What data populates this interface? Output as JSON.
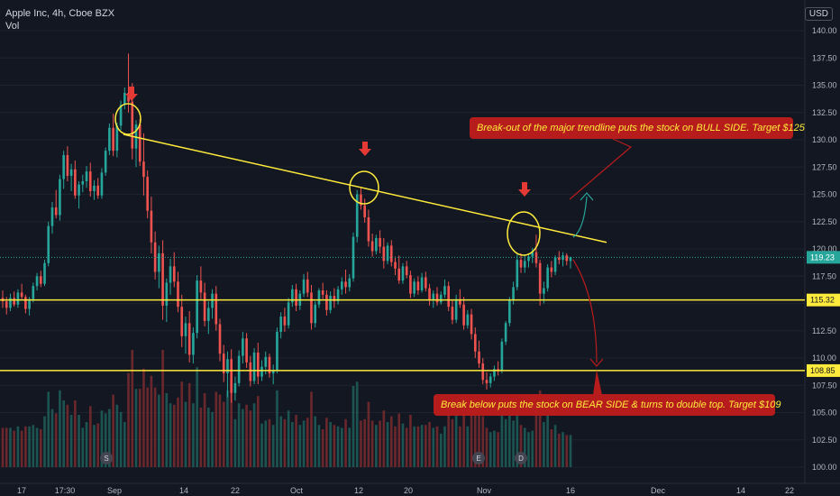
{
  "header": {
    "symbol": "Apple Inc, 4h, Cboe BZX",
    "indicator": "Vol",
    "currency": "USD"
  },
  "colors": {
    "background": "#131722",
    "up": "#26a69a",
    "down": "#ef5350",
    "vol_up": "#1f5f5b",
    "vol_down": "#7a2a2e",
    "yellow": "#ffeb3b",
    "arrow": "#e53935",
    "label_bg": "#b71c1c",
    "label_text": "#ffeb3b",
    "axis_text": "#b2b5be",
    "grid": "#1e222d",
    "current": "#26a69a"
  },
  "annotations": {
    "bull": "Break-out of the major trendline puts the stock on BULL SIDE. Target $125",
    "bear": "Break below puts the stock on BEAR SIDE & turns to double top. Target $109"
  },
  "markers": [
    {
      "date": "Sep 2",
      "label": "S"
    },
    {
      "date": "Oct 30",
      "label": "E"
    },
    {
      "date": "Nov 6",
      "label": "D"
    }
  ],
  "chart_data": {
    "type": "candlestick",
    "y_ticks": [
      "140.00",
      "137.50",
      "135.00",
      "132.50",
      "130.00",
      "127.50",
      "125.00",
      "122.50",
      "120.00",
      "117.50",
      "115.00",
      "112.50",
      "110.00",
      "107.50",
      "105.00",
      "102.50",
      "100.00"
    ],
    "x_ticks": [
      "17",
      "17:30",
      "Sep",
      "14",
      "22",
      "Oct",
      "12",
      "20",
      "Nov",
      "16",
      "Dec",
      "14",
      "22"
    ],
    "ylim": [
      100,
      140.5
    ],
    "horizontal_levels": [
      {
        "value": 115.32,
        "label": "115.32"
      },
      {
        "value": 108.85,
        "label": "108.85"
      }
    ],
    "current_price": {
      "value": 119.23,
      "label": "119.23"
    },
    "trendline": {
      "from": 130.5,
      "to": 120.6
    },
    "ohlc": [
      [
        115.5,
        116.2,
        114.6,
        115.2
      ],
      [
        115.2,
        115.6,
        114.0,
        114.6
      ],
      [
        114.6,
        115.9,
        114.3,
        115.5
      ],
      [
        115.5,
        116.1,
        114.7,
        114.9
      ],
      [
        114.9,
        116.3,
        114.6,
        116.0
      ],
      [
        116.0,
        116.8,
        115.4,
        115.6
      ],
      [
        115.6,
        115.8,
        114.1,
        114.5
      ],
      [
        114.5,
        115.6,
        113.9,
        115.4
      ],
      [
        115.4,
        116.9,
        115.1,
        116.6
      ],
      [
        116.6,
        117.8,
        116.2,
        117.5
      ],
      [
        117.5,
        118.0,
        116.5,
        116.8
      ],
      [
        116.8,
        119.0,
        116.6,
        118.7
      ],
      [
        118.7,
        122.5,
        118.4,
        122.1
      ],
      [
        122.1,
        124.3,
        121.4,
        123.8
      ],
      [
        123.8,
        125.4,
        122.8,
        123.1
      ],
      [
        123.1,
        126.8,
        122.6,
        126.4
      ],
      [
        126.4,
        129.0,
        125.5,
        128.6
      ],
      [
        128.6,
        129.4,
        126.2,
        126.7
      ],
      [
        126.7,
        127.8,
        125.3,
        127.3
      ],
      [
        127.3,
        128.1,
        124.6,
        124.9
      ],
      [
        124.9,
        126.2,
        123.7,
        125.9
      ],
      [
        125.9,
        126.8,
        125.2,
        126.2
      ],
      [
        126.2,
        127.6,
        125.6,
        127.1
      ],
      [
        127.1,
        127.9,
        124.8,
        125.3
      ],
      [
        125.3,
        126.3,
        124.5,
        125.8
      ],
      [
        125.8,
        126.5,
        124.6,
        124.9
      ],
      [
        124.9,
        127.4,
        124.6,
        127.0
      ],
      [
        127.0,
        129.3,
        126.7,
        129.0
      ],
      [
        129.0,
        131.5,
        128.6,
        131.1
      ],
      [
        131.1,
        132.4,
        128.5,
        129.0
      ],
      [
        129.0,
        131.6,
        128.4,
        131.3
      ],
      [
        131.3,
        133.6,
        130.9,
        133.2
      ],
      [
        133.2,
        134.8,
        132.8,
        134.3
      ],
      [
        134.3,
        137.9,
        132.5,
        133.5
      ],
      [
        133.5,
        135.2,
        128.2,
        129.2
      ],
      [
        129.2,
        131.8,
        127.5,
        131.4
      ],
      [
        131.4,
        131.9,
        127.6,
        128.0
      ],
      [
        128.0,
        130.6,
        124.9,
        126.6
      ],
      [
        126.6,
        127.2,
        122.8,
        123.5
      ],
      [
        123.5,
        124.8,
        119.6,
        120.6
      ],
      [
        120.6,
        121.6,
        117.2,
        117.9
      ],
      [
        117.9,
        120.3,
        116.4,
        119.6
      ],
      [
        119.6,
        120.8,
        113.5,
        114.8
      ],
      [
        114.8,
        117.3,
        113.3,
        116.9
      ],
      [
        116.9,
        119.1,
        115.8,
        118.4
      ],
      [
        118.4,
        119.7,
        116.5,
        117.0
      ],
      [
        117.0,
        117.9,
        114.2,
        114.7
      ],
      [
        114.7,
        115.8,
        111.0,
        112.0
      ],
      [
        112.0,
        113.8,
        110.4,
        113.2
      ],
      [
        113.2,
        114.3,
        109.6,
        110.3
      ],
      [
        110.3,
        112.8,
        109.5,
        112.3
      ],
      [
        112.3,
        117.6,
        111.8,
        117.1
      ],
      [
        117.1,
        118.4,
        115.4,
        116.0
      ],
      [
        116.0,
        116.9,
        112.9,
        113.4
      ],
      [
        113.4,
        115.2,
        112.2,
        114.6
      ],
      [
        114.6,
        116.3,
        113.6,
        115.9
      ],
      [
        115.9,
        116.6,
        112.5,
        113.1
      ],
      [
        113.1,
        113.6,
        109.7,
        110.4
      ],
      [
        110.4,
        111.2,
        107.8,
        108.6
      ],
      [
        108.6,
        110.6,
        106.4,
        109.9
      ],
      [
        109.9,
        110.8,
        105.9,
        106.8
      ],
      [
        106.8,
        108.3,
        106.1,
        107.7
      ],
      [
        107.7,
        110.7,
        107.4,
        110.2
      ],
      [
        110.2,
        112.4,
        109.5,
        111.8
      ],
      [
        111.8,
        112.3,
        109.1,
        109.6
      ],
      [
        109.6,
        110.2,
        107.4,
        107.9
      ],
      [
        107.9,
        110.9,
        107.6,
        110.5
      ],
      [
        110.5,
        111.4,
        107.6,
        108.3
      ],
      [
        108.3,
        109.8,
        107.9,
        109.2
      ],
      [
        109.2,
        110.6,
        108.5,
        110.1
      ],
      [
        110.1,
        110.4,
        108.2,
        108.6
      ],
      [
        108.6,
        109.4,
        107.6,
        108.9
      ],
      [
        108.9,
        112.8,
        108.6,
        112.4
      ],
      [
        112.4,
        114.2,
        111.8,
        113.8
      ],
      [
        113.8,
        114.6,
        112.4,
        113.0
      ],
      [
        113.0,
        115.5,
        112.7,
        115.1
      ],
      [
        115.1,
        116.7,
        114.7,
        116.3
      ],
      [
        116.3,
        116.8,
        114.3,
        114.8
      ],
      [
        114.8,
        116.2,
        114.4,
        115.9
      ],
      [
        115.9,
        117.7,
        115.6,
        117.2
      ],
      [
        117.2,
        117.9,
        115.6,
        116.0
      ],
      [
        116.0,
        116.7,
        112.6,
        113.2
      ],
      [
        113.2,
        115.2,
        112.8,
        114.9
      ],
      [
        114.9,
        116.4,
        114.6,
        116.2
      ],
      [
        116.2,
        116.9,
        115.4,
        115.8
      ],
      [
        115.8,
        116.2,
        113.9,
        114.4
      ],
      [
        114.4,
        116.1,
        114.1,
        115.7
      ],
      [
        115.7,
        116.4,
        114.6,
        115.2
      ],
      [
        115.2,
        116.6,
        114.9,
        116.3
      ],
      [
        116.3,
        117.4,
        115.8,
        117.0
      ],
      [
        117.0,
        118.1,
        115.9,
        116.5
      ],
      [
        116.5,
        117.7,
        116.1,
        117.3
      ],
      [
        117.3,
        121.5,
        117.0,
        121.1
      ],
      [
        121.1,
        125.4,
        120.6,
        125.0
      ],
      [
        125.0,
        125.7,
        123.6,
        124.0
      ],
      [
        124.0,
        124.6,
        122.4,
        122.9
      ],
      [
        122.9,
        123.6,
        120.2,
        120.7
      ],
      [
        120.7,
        121.4,
        119.3,
        119.8
      ],
      [
        119.8,
        121.3,
        119.5,
        121.0
      ],
      [
        121.0,
        121.7,
        119.6,
        120.2
      ],
      [
        120.2,
        121.0,
        118.2,
        118.9
      ],
      [
        118.9,
        120.6,
        118.6,
        120.3
      ],
      [
        120.3,
        120.8,
        118.4,
        118.8
      ],
      [
        118.8,
        119.3,
        117.6,
        118.2
      ],
      [
        118.2,
        119.4,
        116.8,
        117.1
      ],
      [
        117.1,
        118.7,
        116.8,
        118.4
      ],
      [
        118.4,
        118.9,
        117.3,
        117.6
      ],
      [
        117.6,
        118.0,
        115.5,
        115.9
      ],
      [
        115.9,
        117.3,
        115.6,
        117.0
      ],
      [
        117.0,
        117.5,
        115.8,
        116.2
      ],
      [
        116.2,
        117.8,
        116.0,
        117.4
      ],
      [
        117.4,
        117.9,
        116.1,
        116.4
      ],
      [
        116.4,
        116.8,
        114.8,
        115.3
      ],
      [
        115.3,
        116.2,
        114.6,
        115.9
      ],
      [
        115.9,
        116.5,
        114.8,
        115.1
      ],
      [
        115.1,
        116.1,
        114.9,
        115.8
      ],
      [
        115.8,
        117.2,
        115.5,
        116.6
      ],
      [
        116.6,
        117.0,
        114.3,
        114.7
      ],
      [
        114.7,
        115.3,
        113.1,
        113.5
      ],
      [
        113.5,
        115.8,
        113.2,
        115.4
      ],
      [
        115.4,
        116.3,
        114.6,
        114.9
      ],
      [
        114.9,
        115.6,
        112.6,
        113.0
      ],
      [
        113.0,
        114.4,
        112.7,
        114.0
      ],
      [
        114.0,
        114.5,
        111.7,
        112.2
      ],
      [
        112.2,
        112.8,
        110.0,
        110.6
      ],
      [
        110.6,
        111.6,
        109.1,
        109.5
      ],
      [
        109.5,
        110.0,
        107.6,
        108.0
      ],
      [
        108.0,
        108.7,
        107.1,
        107.7
      ],
      [
        107.7,
        108.6,
        107.3,
        108.3
      ],
      [
        108.3,
        109.3,
        107.9,
        109.0
      ],
      [
        109.0,
        109.7,
        108.4,
        108.8
      ],
      [
        108.8,
        111.8,
        108.6,
        111.5
      ],
      [
        111.5,
        113.4,
        111.2,
        113.2
      ],
      [
        113.2,
        115.6,
        112.9,
        115.3
      ],
      [
        115.3,
        117.0,
        114.9,
        116.5
      ],
      [
        116.5,
        119.5,
        116.2,
        119.0
      ],
      [
        119.0,
        119.6,
        117.8,
        118.3
      ],
      [
        118.3,
        119.4,
        117.8,
        118.9
      ],
      [
        118.9,
        119.6,
        118.3,
        119.3
      ],
      [
        119.3,
        120.1,
        118.7,
        119.7
      ],
      [
        119.7,
        121.3,
        118.3,
        118.7
      ],
      [
        118.7,
        119.0,
        114.8,
        115.9
      ],
      [
        115.9,
        117.0,
        115.0,
        116.4
      ],
      [
        116.4,
        118.6,
        116.1,
        118.3
      ],
      [
        118.3,
        118.9,
        117.4,
        117.9
      ],
      [
        117.9,
        119.4,
        117.6,
        119.2
      ],
      [
        119.2,
        119.8,
        118.6,
        119.0
      ],
      [
        119.0,
        119.7,
        118.4,
        119.4
      ],
      [
        119.4,
        119.6,
        118.5,
        118.9
      ],
      [
        118.9,
        119.3,
        118.2,
        119.23
      ]
    ],
    "volume_max": 1
  }
}
